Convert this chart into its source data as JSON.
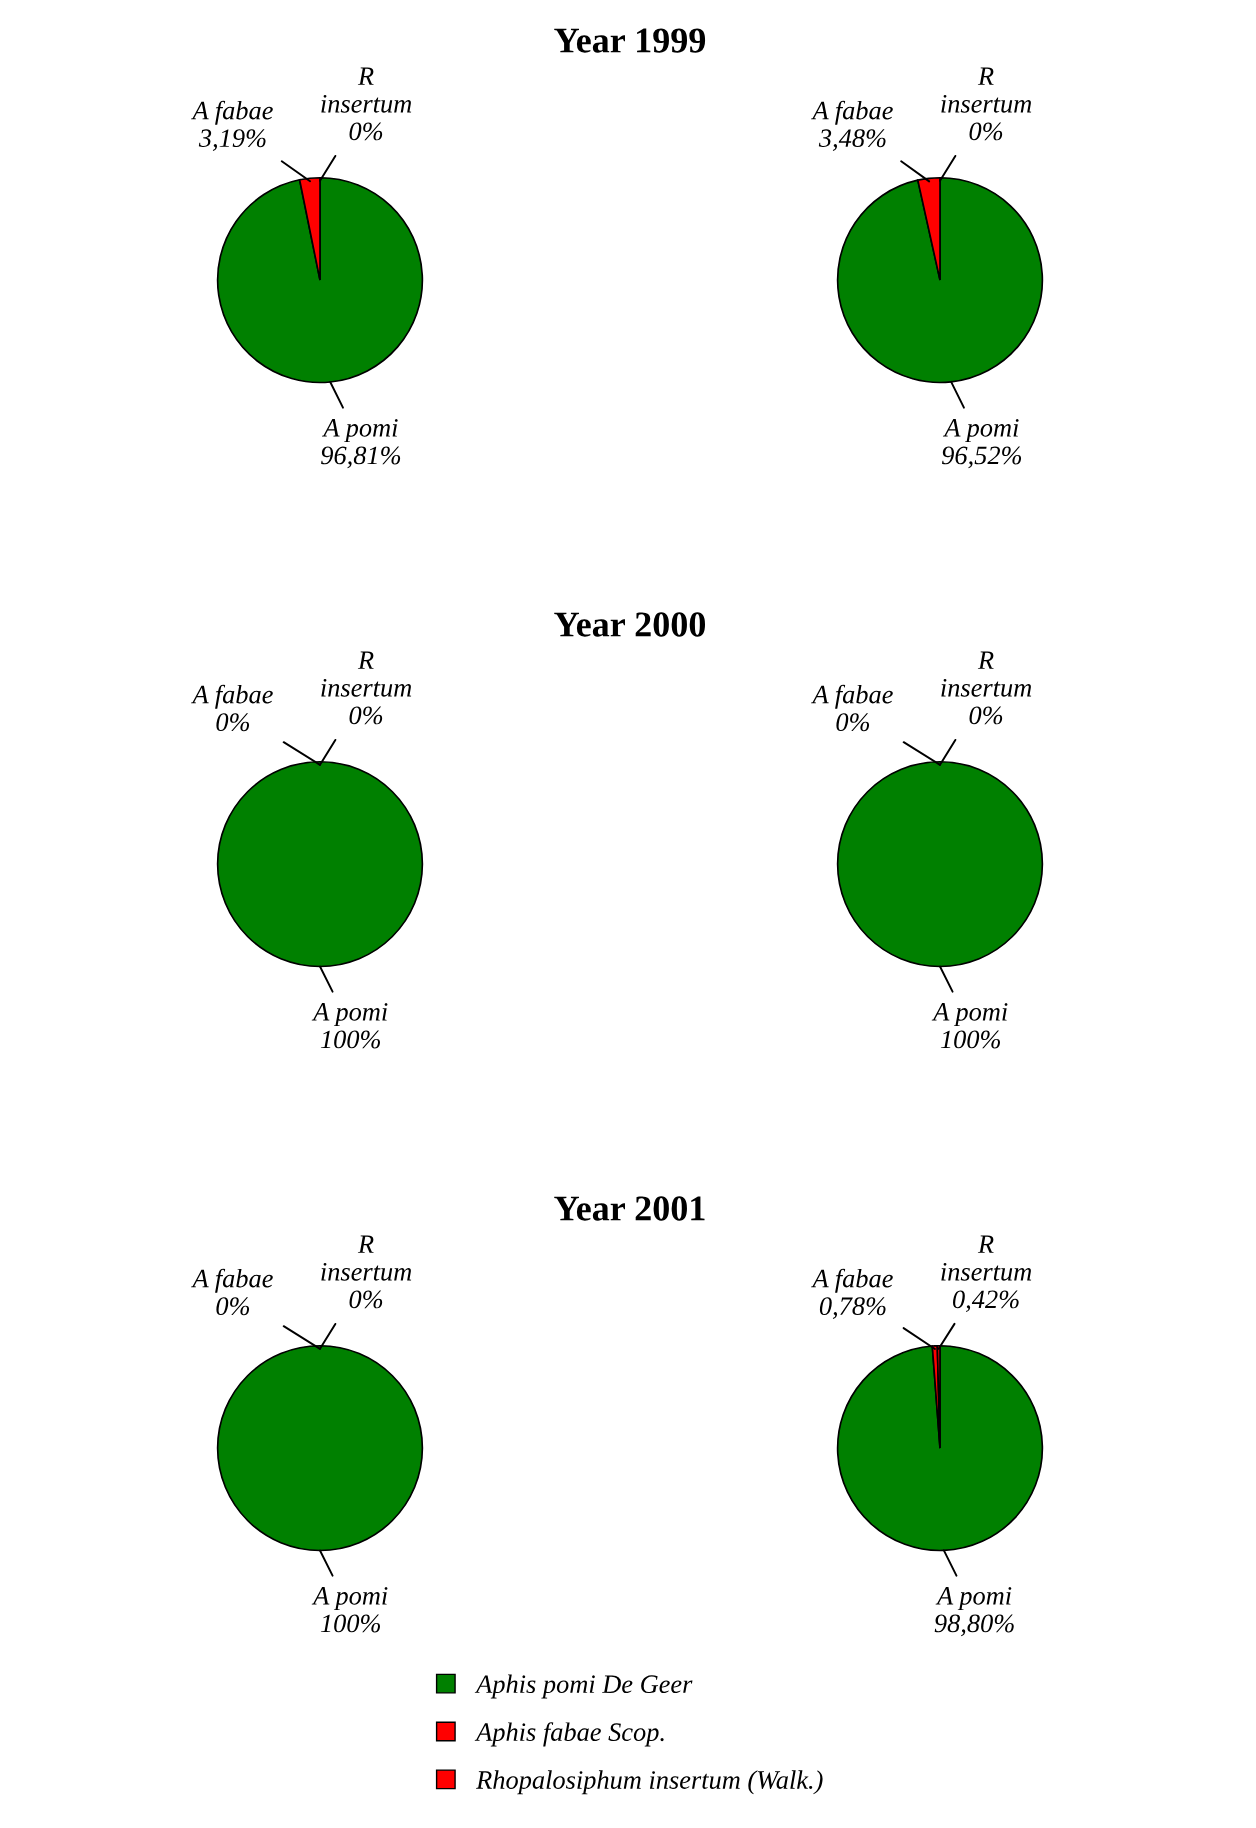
{
  "chart_data": [
    {
      "type": "pie",
      "title": "Year 1999",
      "categories": [
        "A pomi",
        "A fabae",
        "R\ninsertum"
      ],
      "values": [
        96.81,
        3.19,
        0
      ],
      "colors": [
        "#008000",
        "#ff0000",
        "#ff0000"
      ],
      "value_labels": [
        "96,81%",
        "3,19%",
        "0%"
      ]
    },
    {
      "type": "pie",
      "categories": [
        "A pomi",
        "A fabae",
        "R\ninsertum"
      ],
      "values": [
        96.52,
        3.48,
        0
      ],
      "colors": [
        "#008000",
        "#ff0000",
        "#ff0000"
      ],
      "value_labels": [
        "96,52%",
        "3,48%",
        "0%"
      ]
    },
    {
      "type": "pie",
      "title": "Year 2000",
      "categories": [
        "A pomi",
        "A fabae",
        "R\ninsertum"
      ],
      "values": [
        100,
        0,
        0
      ],
      "colors": [
        "#008000",
        "#ff0000",
        "#ff0000"
      ],
      "value_labels": [
        "100%",
        "0%",
        "0%"
      ]
    },
    {
      "type": "pie",
      "categories": [
        "A pomi",
        "A fabae",
        "R\ninsertum"
      ],
      "values": [
        100,
        0,
        0
      ],
      "colors": [
        "#008000",
        "#ff0000",
        "#ff0000"
      ],
      "value_labels": [
        "100%",
        "0%",
        "0%"
      ]
    },
    {
      "type": "pie",
      "title": "Year 2001",
      "categories": [
        "A pomi",
        "A fabae",
        "R\ninsertum"
      ],
      "values": [
        100,
        0,
        0
      ],
      "colors": [
        "#008000",
        "#ff0000",
        "#ff0000"
      ],
      "value_labels": [
        "100%",
        "0%",
        "0%"
      ]
    },
    {
      "type": "pie",
      "categories": [
        "A pomi",
        "A fabae",
        "R\ninsertum"
      ],
      "values": [
        98.8,
        0.78,
        0.42
      ],
      "colors": [
        "#008000",
        "#ff0000",
        "#ff0000"
      ],
      "value_labels": [
        "98,80%",
        "0,78%",
        "0,42%"
      ]
    },
    {
      "type": "other",
      "categories": [
        "Aphis pomi De Geer",
        "Aphis fabae Scop.",
        "Rhopalosiphum insertum (Walk.)"
      ],
      "colors": [
        "#008000",
        "#ff0000",
        "#ff0000"
      ]
    }
  ]
}
